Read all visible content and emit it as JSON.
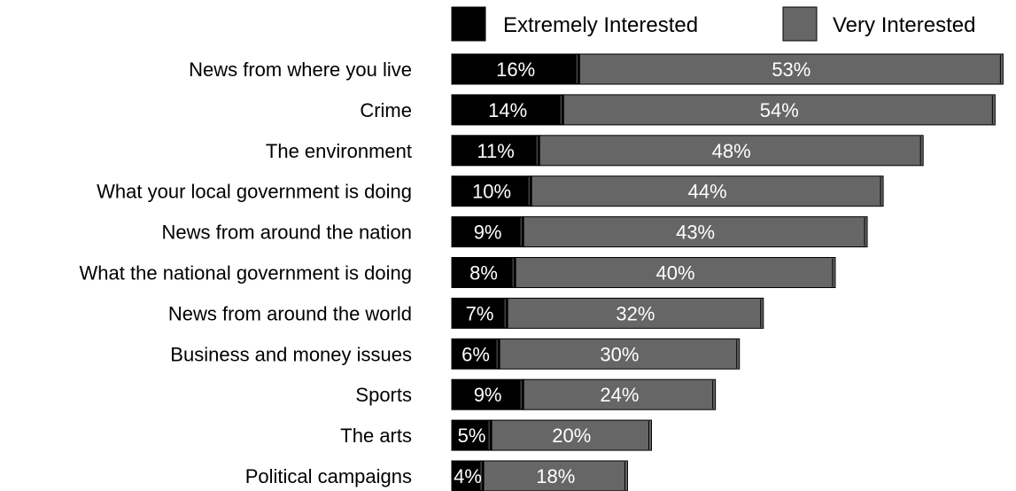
{
  "chart_data": {
    "type": "bar",
    "orientation": "horizontal",
    "stacked": true,
    "value_format": "percent",
    "categories": [
      "News from where you live",
      "Crime",
      "The environment",
      "What your local government is doing",
      "News from around the nation",
      "What the national government is doing",
      "News from around the world",
      "Business and money issues",
      "Sports",
      "The arts",
      "Political campaigns"
    ],
    "series": [
      {
        "name": "Extremely Interested",
        "color": "#000000",
        "values": [
          16,
          14,
          11,
          10,
          9,
          8,
          7,
          6,
          9,
          5,
          4
        ]
      },
      {
        "name": "Very Interested",
        "color": "#666666",
        "values": [
          53,
          54,
          48,
          44,
          43,
          40,
          32,
          30,
          24,
          20,
          18
        ]
      }
    ],
    "legend_position": "top-right",
    "gridlines": false,
    "axes_visible": false
  }
}
